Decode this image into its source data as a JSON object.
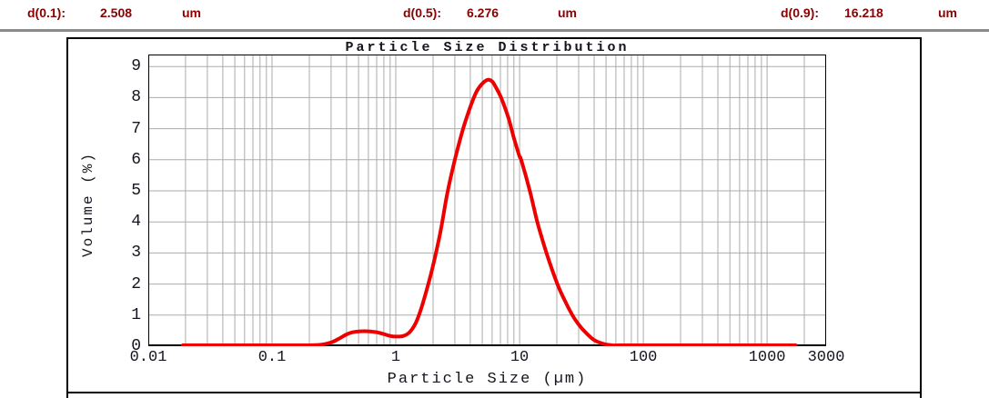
{
  "header": {
    "items": [
      {
        "label": "d(0.1):",
        "value": "2.508",
        "unit": "um"
      },
      {
        "label": "d(0.5):",
        "value": "6.276",
        "unit": "um"
      },
      {
        "label": "d(0.9):",
        "value": "16.218",
        "unit": "um"
      }
    ]
  },
  "colors": {
    "header_text": "#8b0000",
    "header_rule": "#8a8a8a",
    "frame_border": "#000000",
    "grid": "#ababab",
    "axis_text": "#14141e",
    "curve": "#ee0000"
  },
  "chart_data": {
    "type": "line",
    "title": "Particle Size Distribution",
    "xlabel": "Particle Size (µm)",
    "ylabel": "Volume (%)",
    "x_scale": "log",
    "xlim": [
      0.01,
      3000
    ],
    "ylim": [
      0,
      9.386
    ],
    "grid": true,
    "yticks": [
      0,
      1,
      2,
      3,
      4,
      5,
      6,
      7,
      8,
      9
    ],
    "xticks": [
      {
        "value": 0.01,
        "label": "0.01"
      },
      {
        "value": 0.1,
        "label": "0.1"
      },
      {
        "value": 1,
        "label": "1"
      },
      {
        "value": 10,
        "label": "10"
      },
      {
        "value": 100,
        "label": "100"
      },
      {
        "value": 1000,
        "label": "1000"
      },
      {
        "value": 3000,
        "label": "3000"
      }
    ],
    "series": [
      {
        "name": "volume-distribution",
        "color": "#ee0000",
        "points": [
          [
            0.019,
            0.03
          ],
          [
            0.05,
            0.03
          ],
          [
            0.1,
            0.03
          ],
          [
            0.2,
            0.03
          ],
          [
            0.25,
            0.05
          ],
          [
            0.3,
            0.12
          ],
          [
            0.35,
            0.25
          ],
          [
            0.4,
            0.38
          ],
          [
            0.45,
            0.45
          ],
          [
            0.52,
            0.48
          ],
          [
            0.6,
            0.48
          ],
          [
            0.7,
            0.45
          ],
          [
            0.8,
            0.39
          ],
          [
            0.9,
            0.33
          ],
          [
            1.0,
            0.31
          ],
          [
            1.15,
            0.33
          ],
          [
            1.3,
            0.46
          ],
          [
            1.45,
            0.75
          ],
          [
            1.6,
            1.2
          ],
          [
            1.8,
            1.9
          ],
          [
            2.0,
            2.6
          ],
          [
            2.3,
            3.7
          ],
          [
            2.6,
            4.9
          ],
          [
            3.0,
            6.0
          ],
          [
            3.5,
            7.0
          ],
          [
            4.0,
            7.7
          ],
          [
            4.5,
            8.2
          ],
          [
            5.0,
            8.45
          ],
          [
            5.5,
            8.57
          ],
          [
            6.0,
            8.52
          ],
          [
            6.5,
            8.3
          ],
          [
            7.0,
            8.05
          ],
          [
            7.5,
            7.75
          ],
          [
            8.2,
            7.3
          ],
          [
            9.0,
            6.7
          ],
          [
            10.0,
            6.1
          ],
          [
            10.3,
            6.0
          ],
          [
            12.1,
            5.0
          ],
          [
            13.9,
            4.0
          ],
          [
            16.5,
            3.0
          ],
          [
            20.2,
            2.0
          ],
          [
            23.0,
            1.5
          ],
          [
            26.7,
            1.0
          ],
          [
            30.0,
            0.7
          ],
          [
            34.0,
            0.45
          ],
          [
            40.0,
            0.2
          ],
          [
            48.0,
            0.07
          ],
          [
            56.0,
            0.03
          ],
          [
            70.0,
            0.03
          ],
          [
            100,
            0.03
          ],
          [
            300,
            0.03
          ],
          [
            1000,
            0.03
          ],
          [
            1700,
            0.03
          ]
        ]
      }
    ]
  }
}
